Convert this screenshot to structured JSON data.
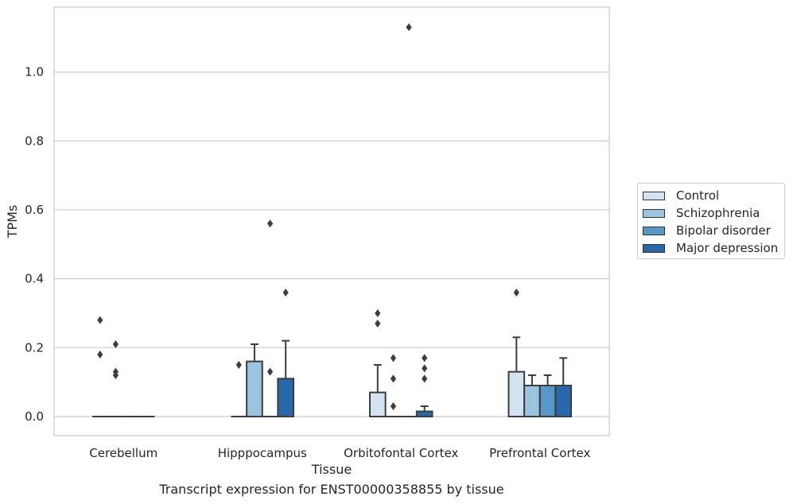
{
  "chart_data": {
    "type": "box",
    "xlabel": "Tissue",
    "ylabel": "TPMs",
    "caption": "Transcript expression for ENST00000358855 by tissue",
    "ylim": [
      -0.055,
      1.19
    ],
    "yticks": [
      "0.0",
      "0.2",
      "0.4",
      "0.6",
      "0.8",
      "1.0"
    ],
    "grid": true,
    "legend_position": "right",
    "categories": [
      "Cerebellum",
      "Hipppocampus",
      "Orbitofontal Cortex",
      "Prefrontal Cortex"
    ],
    "series": [
      {
        "name": "Control",
        "color": "#d3e3f2",
        "boxes": [
          {
            "q1": 0,
            "median": 0,
            "q3": 0,
            "whisker_low": 0,
            "whisker_high": 0,
            "outliers": [
              0.28,
              0.18
            ]
          },
          {
            "q1": 0,
            "median": 0,
            "q3": 0,
            "whisker_low": 0,
            "whisker_high": 0,
            "outliers": [
              0.15
            ]
          },
          {
            "q1": 0,
            "median": 0,
            "q3": 0.07,
            "whisker_low": 0,
            "whisker_high": 0.15,
            "outliers": [
              0.3,
              0.27
            ]
          },
          {
            "q1": 0,
            "median": 0,
            "q3": 0.13,
            "whisker_low": 0,
            "whisker_high": 0.23,
            "outliers": [
              0.36
            ]
          }
        ]
      },
      {
        "name": "Schizophrenia",
        "color": "#9bc5de",
        "boxes": [
          {
            "q1": 0,
            "median": 0,
            "q3": 0,
            "whisker_low": 0,
            "whisker_high": 0,
            "outliers": [
              0.21,
              0.13,
              0.12
            ]
          },
          {
            "q1": 0,
            "median": 0,
            "q3": 0.16,
            "whisker_low": 0,
            "whisker_high": 0.21,
            "outliers": []
          },
          {
            "q1": 0,
            "median": 0,
            "q3": 0,
            "whisker_low": 0,
            "whisker_high": 0,
            "outliers": [
              0.17,
              0.11,
              0.03
            ]
          },
          {
            "q1": 0,
            "median": 0,
            "q3": 0.09,
            "whisker_low": 0,
            "whisker_high": 0.12,
            "outliers": []
          }
        ]
      },
      {
        "name": "Bipolar disorder",
        "color": "#5799c6",
        "boxes": [
          {
            "q1": 0,
            "median": 0,
            "q3": 0,
            "whisker_low": 0,
            "whisker_high": 0,
            "outliers": []
          },
          {
            "q1": 0,
            "median": 0,
            "q3": 0,
            "whisker_low": 0,
            "whisker_high": 0,
            "outliers": [
              0.56,
              0.13
            ]
          },
          {
            "q1": 0,
            "median": 0,
            "q3": 0,
            "whisker_low": 0,
            "whisker_high": 0,
            "outliers": [
              1.13
            ]
          },
          {
            "q1": 0,
            "median": 0,
            "q3": 0.09,
            "whisker_low": 0,
            "whisker_high": 0.12,
            "outliers": []
          }
        ]
      },
      {
        "name": "Major depression",
        "color": "#2867a9",
        "boxes": [
          {
            "q1": 0,
            "median": 0,
            "q3": 0,
            "whisker_low": 0,
            "whisker_high": 0,
            "outliers": []
          },
          {
            "q1": 0,
            "median": 0,
            "q3": 0.11,
            "whisker_low": 0,
            "whisker_high": 0.22,
            "outliers": [
              0.36
            ]
          },
          {
            "q1": 0,
            "median": 0,
            "q3": 0.015,
            "whisker_low": 0,
            "whisker_high": 0.03,
            "outliers": [
              0.17,
              0.14,
              0.11
            ]
          },
          {
            "q1": 0,
            "median": 0,
            "q3": 0.09,
            "whisker_low": 0,
            "whisker_high": 0.17,
            "outliers": []
          }
        ]
      }
    ]
  }
}
